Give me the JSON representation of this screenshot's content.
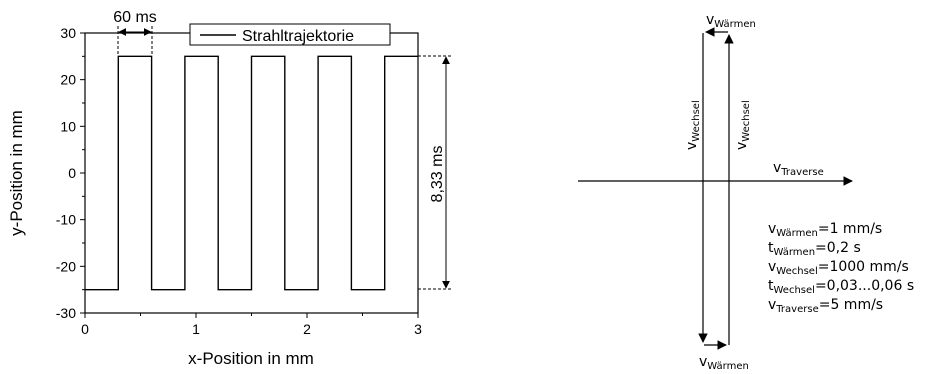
{
  "chart_data": {
    "type": "line",
    "title": "",
    "xlabel": "x-Position in mm",
    "ylabel": "y-Position in mm",
    "xlim": [
      0,
      3
    ],
    "ylim": [
      -30,
      30
    ],
    "xticks": [
      "0",
      "1",
      "2",
      "3"
    ],
    "yticks": [
      "30",
      "20",
      "10",
      "0",
      "-10",
      "-20",
      "-30"
    ],
    "grid": false,
    "legend": {
      "position": "top-right",
      "entries": [
        "Strahltrajektorie"
      ]
    },
    "series": [
      {
        "name": "Strahltrajektorie",
        "x": [
          0,
          0.3,
          0.3,
          0.6,
          0.6,
          0.9,
          0.9,
          1.2,
          1.2,
          1.5,
          1.5,
          1.8,
          1.8,
          2.1,
          2.1,
          2.4,
          2.4,
          2.7,
          2.7,
          3.0
        ],
        "y": [
          -25,
          -25,
          25,
          25,
          -25,
          -25,
          25,
          25,
          -25,
          -25,
          25,
          25,
          -25,
          -25,
          25,
          25,
          -25,
          -25,
          25,
          25
        ]
      }
    ],
    "annotations": {
      "period": "60 ms",
      "vertical": "8,33 ms"
    }
  },
  "diagram": {
    "v": "v",
    "t": "t",
    "sub_waermen": "Wärmen",
    "sub_wechsel": "Wechsel",
    "sub_traverse": "Traverse",
    "params": [
      {
        "sym": "v",
        "sub": "Wärmen",
        "val": "=1 mm/s"
      },
      {
        "sym": "t",
        "sub": "Wärmen",
        "val": "=0,2 s"
      },
      {
        "sym": "v",
        "sub": "Wechsel",
        "val": "=1000 mm/s"
      },
      {
        "sym": "t",
        "sub": "Wechsel",
        "val": "=0,03...0,06 s"
      },
      {
        "sym": "v",
        "sub": "Traverse",
        "val": "=5 mm/s"
      }
    ]
  }
}
